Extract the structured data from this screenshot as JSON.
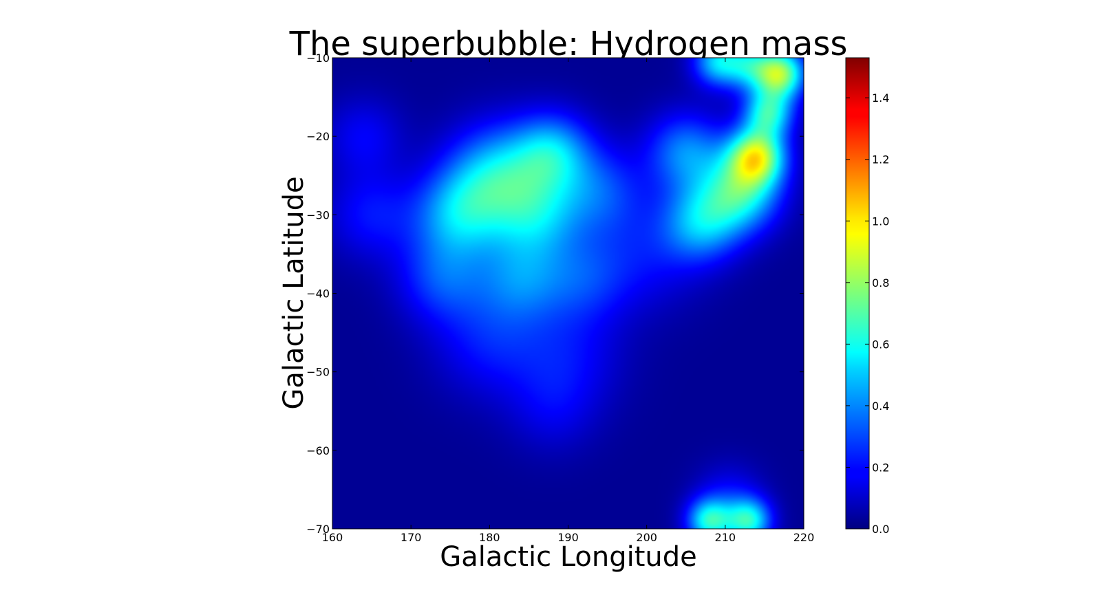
{
  "chart_data": {
    "type": "heatmap",
    "title": "The superbubble: Hydrogen mass",
    "xlabel": "Galactic Longitude",
    "ylabel": "Galactic Latitude",
    "xlim": [
      160,
      220
    ],
    "ylim": [
      -70,
      -10
    ],
    "x_ticks": [
      "160",
      "170",
      "180",
      "190",
      "200",
      "210",
      "220"
    ],
    "y_ticks": [
      "-10",
      "-20",
      "-30",
      "-40",
      "-50",
      "-60",
      "-70"
    ],
    "colorbar": {
      "range": [
        0.0,
        1.53
      ],
      "ticks": [
        "0.0",
        "0.2",
        "0.4",
        "0.6",
        "0.8",
        "1.0",
        "1.2",
        "1.4"
      ],
      "colormap": "jet"
    },
    "background_level": 0.03,
    "blobs": [
      {
        "l": 217,
        "b": -12,
        "value": 0.75,
        "sigma": 2.2
      },
      {
        "l": 214,
        "b": -22.5,
        "value": 0.75,
        "sigma": 2.5
      },
      {
        "l": 215.5,
        "b": -17,
        "value": 0.55,
        "sigma": 2.2
      },
      {
        "l": 213,
        "b": -11,
        "value": 0.4,
        "sigma": 2.2
      },
      {
        "l": 209,
        "b": -10.5,
        "value": 0.45,
        "sigma": 2.2
      },
      {
        "l": 212,
        "b": -27,
        "value": 0.55,
        "sigma": 3.5
      },
      {
        "l": 207,
        "b": -31,
        "value": 0.4,
        "sigma": 3.5
      },
      {
        "l": 205,
        "b": -22,
        "value": 0.35,
        "sigma": 3.5
      },
      {
        "l": 181,
        "b": -25,
        "value": 0.45,
        "sigma": 4.5
      },
      {
        "l": 188,
        "b": -22,
        "value": 0.4,
        "sigma": 3.5
      },
      {
        "l": 176,
        "b": -30,
        "value": 0.38,
        "sigma": 4
      },
      {
        "l": 186,
        "b": -30,
        "value": 0.35,
        "sigma": 4
      },
      {
        "l": 194,
        "b": -27,
        "value": 0.25,
        "sigma": 4
      },
      {
        "l": 174,
        "b": -38,
        "value": 0.25,
        "sigma": 4
      },
      {
        "l": 184,
        "b": -38,
        "value": 0.28,
        "sigma": 4
      },
      {
        "l": 192,
        "b": -38,
        "value": 0.2,
        "sigma": 4
      },
      {
        "l": 165,
        "b": -30,
        "value": 0.18,
        "sigma": 4
      },
      {
        "l": 164,
        "b": -20,
        "value": 0.15,
        "sigma": 3.5
      },
      {
        "l": 180,
        "b": -46,
        "value": 0.18,
        "sigma": 5
      },
      {
        "l": 190,
        "b": -48,
        "value": 0.15,
        "sigma": 5
      },
      {
        "l": 188,
        "b": -55,
        "value": 0.1,
        "sigma": 4
      },
      {
        "l": 200,
        "b": -35,
        "value": 0.15,
        "sigma": 5
      },
      {
        "l": 208,
        "b": -69,
        "value": 0.55,
        "sigma": 2
      },
      {
        "l": 213,
        "b": -69,
        "value": 0.55,
        "sigma": 2
      },
      {
        "l": 210.5,
        "b": -66,
        "value": 0.15,
        "sigma": 3
      }
    ]
  }
}
